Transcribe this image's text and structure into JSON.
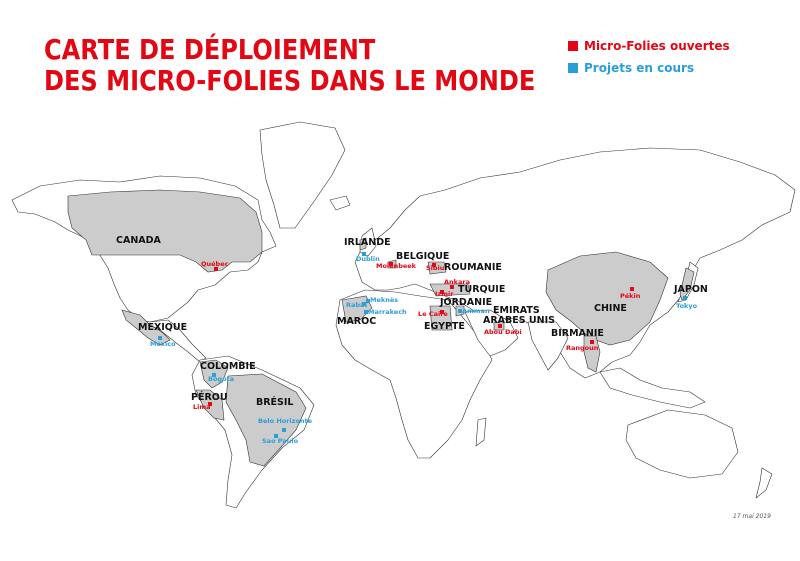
{
  "title_line1": "CARTE DE DÉPLOIEMENT",
  "title_line2": "DES MICRO-FOLIES DANS LE MONDE",
  "colors": {
    "open": "#e30613",
    "project": "#2a9fd6",
    "highlight": "#cccccc",
    "land": "#ffffff",
    "border": "#333333"
  },
  "legend": {
    "open": {
      "label": "Micro-Folies ouvertes",
      "color": "#e30613"
    },
    "project": {
      "label": "Projets en cours",
      "color": "#2a9fd6"
    }
  },
  "countries": {
    "canada": "CANADA",
    "mexique": "MEXIQUE",
    "colombie": "COLOMBIE",
    "perou": "PÉROU",
    "bresil": "BRÉSIL",
    "irlande": "IRLANDE",
    "belgique": "BELGIQUE",
    "roumanie": "ROUMANIE",
    "turquie": "TURQUIE",
    "jordanie": "JORDANIE",
    "maroc": "MAROC",
    "egypte": "EGYPTE",
    "emirats1": "EMIRATS",
    "emirats2": "ARABES UNIS",
    "birmanie": "BIRMANIE",
    "chine": "CHINE",
    "japon": "JAPON"
  },
  "cities": {
    "quebec": "Québec",
    "mexico": "Mexico",
    "bogota": "Bogota",
    "lima": "Lima",
    "belo_horizonte": "Belo Horizonte",
    "sao_paulo": "Sao Paulo",
    "dublin": "Dublin",
    "molenbeek": "Molenbeek",
    "sibiu": "Sibiu",
    "ankara": "Ankara",
    "izmir": "Izmir",
    "rabat": "Rabat",
    "meknes": "Meknès",
    "marrakech": "Marrakech",
    "amman": "Amman",
    "le_caire": "Le Caire",
    "abou_dabi": "Abou Dabi",
    "rangoun": "Rangoun",
    "pekin": "Pékin",
    "tokyo": "Tokyo"
  },
  "date": "17 mai 2019"
}
